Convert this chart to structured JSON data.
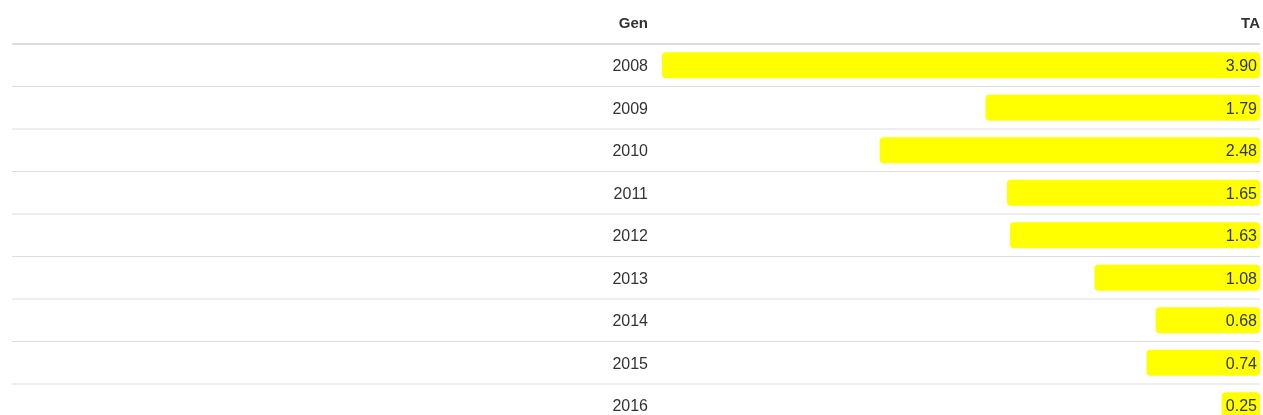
{
  "chart_data": {
    "type": "bar",
    "orientation": "horizontal",
    "ylabel": "Gen",
    "xlabel": "TA",
    "categories": [
      "2008",
      "2009",
      "2010",
      "2011",
      "2012",
      "2013",
      "2014",
      "2015",
      "2016"
    ],
    "values": [
      3.9,
      1.79,
      2.48,
      1.65,
      1.63,
      1.08,
      0.68,
      0.74,
      0.25
    ],
    "value_labels": [
      "3.90",
      "1.79",
      "2.48",
      "1.65",
      "1.63",
      "1.08",
      "0.68",
      "0.74",
      "0.25"
    ],
    "color": "#ffff00",
    "grid": "y"
  }
}
